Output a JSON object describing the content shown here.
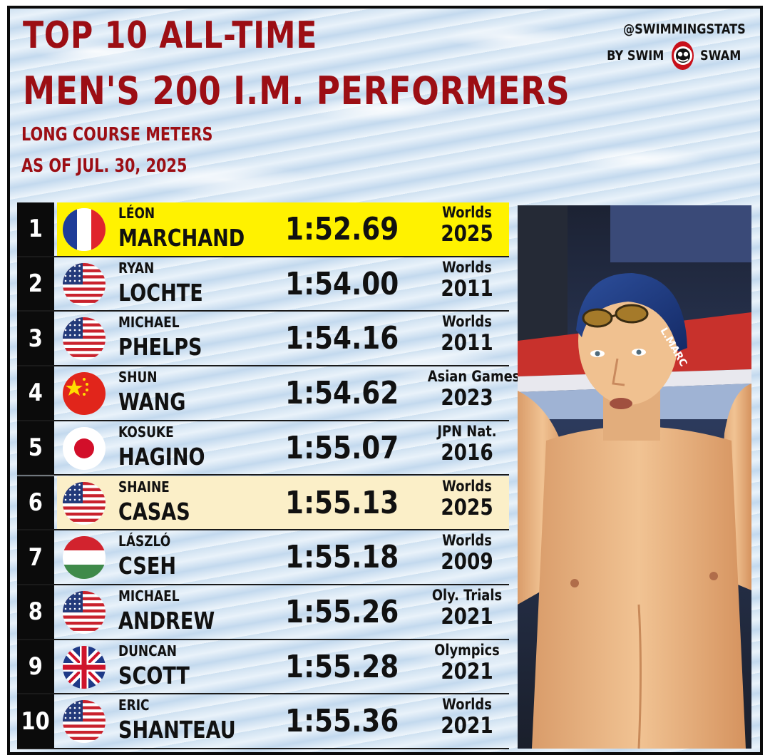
{
  "header": {
    "title_line1": "TOP 10 ALL-TIME",
    "title_line2": "MEN'S 200 I.M. PERFORMERS",
    "subtitle_line1": "LONG COURSE METERS",
    "subtitle_line2": "AS OF JUL. 30, 2025"
  },
  "brand": {
    "handle": "@SWIMMINGSTATS",
    "by_label": "BY SWIM",
    "swam_label": "SWAM",
    "logo_icon": "swimswam-logo-icon"
  },
  "colors": {
    "title_red": "#9c0e14",
    "highlight_yellow": "#fff200",
    "highlight_cream": "#fbefc8",
    "rank_bg": "#0b0b0b"
  },
  "rankings": [
    {
      "rank": "1",
      "first": "LÉON",
      "last": "MARCHAND",
      "time": "1:52.69",
      "meet": "Worlds",
      "year": "2025",
      "flag": "france-flag-icon",
      "highlight": "yellow"
    },
    {
      "rank": "2",
      "first": "RYAN",
      "last": "LOCHTE",
      "time": "1:54.00",
      "meet": "Worlds",
      "year": "2011",
      "flag": "usa-flag-icon",
      "highlight": "none"
    },
    {
      "rank": "3",
      "first": "MICHAEL",
      "last": "PHELPS",
      "time": "1:54.16",
      "meet": "Worlds",
      "year": "2011",
      "flag": "usa-flag-icon",
      "highlight": "none"
    },
    {
      "rank": "4",
      "first": "SHUN",
      "last": "WANG",
      "time": "1:54.62",
      "meet": "Asian Games",
      "year": "2023",
      "flag": "china-flag-icon",
      "highlight": "none"
    },
    {
      "rank": "5",
      "first": "KOSUKE",
      "last": "HAGINO",
      "time": "1:55.07",
      "meet": "JPN Nat.",
      "year": "2016",
      "flag": "japan-flag-icon",
      "highlight": "none"
    },
    {
      "rank": "6",
      "first": "SHAINE",
      "last": "CASAS",
      "time": "1:55.13",
      "meet": "Worlds",
      "year": "2025",
      "flag": "usa-flag-icon",
      "highlight": "cream"
    },
    {
      "rank": "7",
      "first": "LÁSZLÓ",
      "last": "CSEH",
      "time": "1:55.18",
      "meet": "Worlds",
      "year": "2009",
      "flag": "hungary-flag-icon",
      "highlight": "none"
    },
    {
      "rank": "8",
      "first": "MICHAEL",
      "last": "ANDREW",
      "time": "1:55.26",
      "meet": "Oly. Trials",
      "year": "2021",
      "flag": "usa-flag-icon",
      "highlight": "none"
    },
    {
      "rank": "9",
      "first": "DUNCAN",
      "last": "SCOTT",
      "time": "1:55.28",
      "meet": "Olympics",
      "year": "2021",
      "flag": "uk-flag-icon",
      "highlight": "none"
    },
    {
      "rank": "10",
      "first": "ERIC",
      "last": "SHANTEAU",
      "time": "1:55.36",
      "meet": "Worlds",
      "year": "2021",
      "flag": "usa-flag-icon",
      "highlight": "none"
    }
  ],
  "photo": {
    "subject": "swimmer-photo",
    "cap_text": "L.MARC"
  }
}
